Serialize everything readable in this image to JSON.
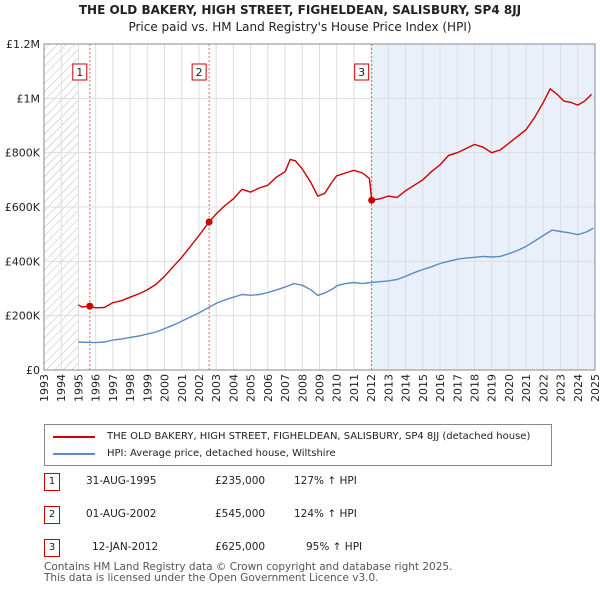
{
  "chart_data": {
    "type": "line",
    "title": "THE OLD BAKERY, HIGH STREET, FIGHELDEAN, SALISBURY, SP4 8JJ",
    "subtitle": "Price paid vs. HM Land Registry's House Price Index (HPI)",
    "xlim": [
      1993,
      2025
    ],
    "ylim": [
      0,
      1200000
    ],
    "y_ticks": [
      0,
      200000,
      400000,
      600000,
      800000,
      1000000,
      1200000
    ],
    "y_tick_labels": [
      "£0",
      "£200K",
      "£400K",
      "£600K",
      "£800K",
      "£1M",
      "£1.2M"
    ],
    "x_ticks": [
      1993,
      1994,
      1995,
      1996,
      1997,
      1998,
      1999,
      2000,
      2001,
      2002,
      2003,
      2004,
      2005,
      2006,
      2007,
      2008,
      2009,
      2010,
      2011,
      2012,
      2013,
      2014,
      2015,
      2016,
      2017,
      2018,
      2019,
      2020,
      2021,
      2022,
      2023,
      2024,
      2025
    ],
    "hatched_before": 1995.0,
    "shaded_after": 2012.03,
    "series": [
      {
        "name": "THE OLD BAKERY, HIGH STREET, FIGHELDEAN, SALISBURY, SP4 8JJ (detached house)",
        "color": "#cc0000",
        "points": [
          [
            1995.0,
            240000
          ],
          [
            1995.2,
            232000
          ],
          [
            1995.66,
            235000
          ],
          [
            1996.0,
            229000
          ],
          [
            1996.5,
            230000
          ],
          [
            1997.0,
            248000
          ],
          [
            1997.5,
            255000
          ],
          [
            1998.0,
            268000
          ],
          [
            1998.5,
            280000
          ],
          [
            1999.0,
            295000
          ],
          [
            1999.5,
            315000
          ],
          [
            2000.0,
            345000
          ],
          [
            2000.5,
            380000
          ],
          [
            2001.0,
            415000
          ],
          [
            2001.5,
            455000
          ],
          [
            2002.0,
            495000
          ],
          [
            2002.59,
            545000
          ],
          [
            2003.0,
            575000
          ],
          [
            2003.5,
            605000
          ],
          [
            2004.0,
            630000
          ],
          [
            2004.5,
            665000
          ],
          [
            2005.0,
            655000
          ],
          [
            2005.5,
            670000
          ],
          [
            2006.0,
            680000
          ],
          [
            2006.5,
            710000
          ],
          [
            2007.0,
            730000
          ],
          [
            2007.3,
            775000
          ],
          [
            2007.6,
            770000
          ],
          [
            2008.0,
            740000
          ],
          [
            2008.5,
            690000
          ],
          [
            2008.9,
            640000
          ],
          [
            2009.3,
            650000
          ],
          [
            2009.7,
            690000
          ],
          [
            2010.0,
            715000
          ],
          [
            2010.5,
            725000
          ],
          [
            2011.0,
            735000
          ],
          [
            2011.5,
            725000
          ],
          [
            2011.9,
            705000
          ],
          [
            2012.03,
            625000
          ],
          [
            2012.5,
            630000
          ],
          [
            2013.0,
            640000
          ],
          [
            2013.5,
            635000
          ],
          [
            2014.0,
            660000
          ],
          [
            2014.5,
            680000
          ],
          [
            2015.0,
            700000
          ],
          [
            2015.5,
            730000
          ],
          [
            2016.0,
            755000
          ],
          [
            2016.5,
            790000
          ],
          [
            2017.0,
            800000
          ],
          [
            2017.5,
            815000
          ],
          [
            2018.0,
            830000
          ],
          [
            2018.5,
            820000
          ],
          [
            2019.0,
            800000
          ],
          [
            2019.5,
            810000
          ],
          [
            2020.0,
            835000
          ],
          [
            2020.5,
            860000
          ],
          [
            2021.0,
            885000
          ],
          [
            2021.5,
            930000
          ],
          [
            2022.0,
            985000
          ],
          [
            2022.4,
            1035000
          ],
          [
            2022.8,
            1015000
          ],
          [
            2023.2,
            990000
          ],
          [
            2023.6,
            985000
          ],
          [
            2024.0,
            975000
          ],
          [
            2024.4,
            990000
          ],
          [
            2024.8,
            1015000
          ]
        ]
      },
      {
        "name": "HPI: Average price, detached house, Wiltshire",
        "color": "#5b8ac6",
        "points": [
          [
            1995.0,
            103000
          ],
          [
            1995.5,
            102000
          ],
          [
            1996.0,
            101000
          ],
          [
            1996.5,
            103000
          ],
          [
            1997.0,
            110000
          ],
          [
            1997.5,
            114000
          ],
          [
            1998.0,
            120000
          ],
          [
            1998.5,
            125000
          ],
          [
            1999.0,
            132000
          ],
          [
            1999.5,
            140000
          ],
          [
            2000.0,
            152000
          ],
          [
            2000.5,
            165000
          ],
          [
            2001.0,
            180000
          ],
          [
            2001.5,
            195000
          ],
          [
            2002.0,
            210000
          ],
          [
            2002.5,
            228000
          ],
          [
            2003.0,
            245000
          ],
          [
            2003.5,
            258000
          ],
          [
            2004.0,
            268000
          ],
          [
            2004.5,
            278000
          ],
          [
            2005.0,
            275000
          ],
          [
            2005.5,
            278000
          ],
          [
            2006.0,
            285000
          ],
          [
            2006.5,
            295000
          ],
          [
            2007.0,
            305000
          ],
          [
            2007.5,
            318000
          ],
          [
            2008.0,
            312000
          ],
          [
            2008.5,
            295000
          ],
          [
            2008.9,
            275000
          ],
          [
            2009.3,
            283000
          ],
          [
            2009.8,
            300000
          ],
          [
            2010.0,
            310000
          ],
          [
            2010.5,
            318000
          ],
          [
            2011.0,
            322000
          ],
          [
            2011.5,
            318000
          ],
          [
            2012.0,
            322000
          ],
          [
            2012.5,
            325000
          ],
          [
            2013.0,
            328000
          ],
          [
            2013.5,
            333000
          ],
          [
            2014.0,
            345000
          ],
          [
            2014.5,
            358000
          ],
          [
            2015.0,
            370000
          ],
          [
            2015.5,
            380000
          ],
          [
            2016.0,
            392000
          ],
          [
            2016.5,
            400000
          ],
          [
            2017.0,
            408000
          ],
          [
            2017.5,
            412000
          ],
          [
            2018.0,
            415000
          ],
          [
            2018.5,
            418000
          ],
          [
            2019.0,
            416000
          ],
          [
            2019.5,
            418000
          ],
          [
            2020.0,
            428000
          ],
          [
            2020.5,
            440000
          ],
          [
            2021.0,
            455000
          ],
          [
            2021.5,
            475000
          ],
          [
            2022.0,
            495000
          ],
          [
            2022.5,
            515000
          ],
          [
            2023.0,
            510000
          ],
          [
            2023.5,
            505000
          ],
          [
            2024.0,
            498000
          ],
          [
            2024.5,
            508000
          ],
          [
            2024.9,
            522000
          ]
        ]
      }
    ],
    "sales": [
      {
        "label": "1",
        "date": "31-AUG-1995",
        "year": 1995.66,
        "price": 235000,
        "price_text": "£235,000",
        "hpi_text": "127% ↑ HPI"
      },
      {
        "label": "2",
        "date": "01-AUG-2002",
        "year": 2002.59,
        "price": 545000,
        "price_text": "£545,000",
        "hpi_text": "124% ↑ HPI"
      },
      {
        "label": "3",
        "date": "12-JAN-2012",
        "year": 2012.03,
        "price": 625000,
        "price_text": "£625,000",
        "hpi_text": "95% ↑ HPI"
      }
    ]
  },
  "legend": {
    "property_label": "THE OLD BAKERY, HIGH STREET, FIGHELDEAN, SALISBURY, SP4 8JJ (detached house)",
    "hpi_label": "HPI: Average price, detached house, Wiltshire"
  },
  "footer": {
    "line1": "Contains HM Land Registry data © Crown copyright and database right 2025.",
    "line2": "This data is licensed under the Open Government Licence v3.0."
  }
}
